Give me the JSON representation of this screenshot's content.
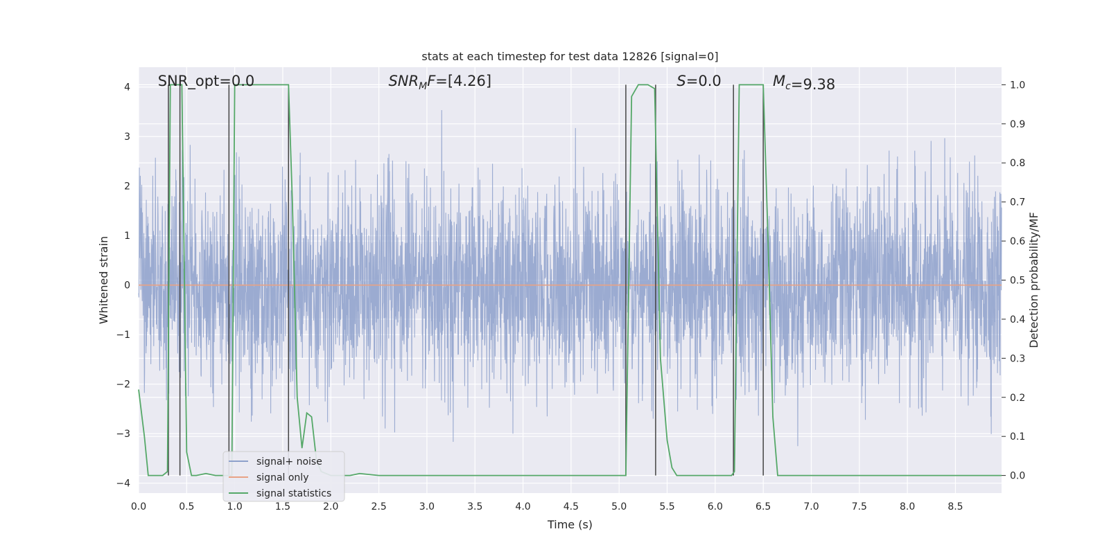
{
  "chart_data": {
    "type": "line",
    "title": "stats at each timestep for test data 12826 [signal=0]",
    "xlabel": "Time (s)",
    "ylabel": "Whitened strain",
    "ylabel_right": "Detection probability/MF",
    "xlim": [
      0.0,
      8.98
    ],
    "ylim": [
      -4.2,
      4.4
    ],
    "ylim_right": [
      -0.045,
      1.045
    ],
    "x_ticks": [
      0.0,
      0.5,
      1.0,
      1.5,
      2.0,
      2.5,
      3.0,
      3.5,
      4.0,
      4.5,
      5.0,
      5.5,
      6.0,
      6.5,
      7.0,
      7.5,
      8.0,
      8.5
    ],
    "x_tick_labels": [
      "0.0",
      "0.5",
      "1.0",
      "1.5",
      "2.0",
      "2.5",
      "3.0",
      "3.5",
      "4.0",
      "4.5",
      "5.0",
      "5.5",
      "6.0",
      "6.5",
      "7.0",
      "7.5",
      "8.0",
      "8.5"
    ],
    "y_ticks": [
      4,
      3,
      2,
      1,
      0,
      -1,
      -2,
      -3,
      -4
    ],
    "y_tick_labels": [
      "4",
      "3",
      "2",
      "1",
      "0",
      "−1",
      "−2",
      "−3",
      "−4"
    ],
    "y_ticks_right": [
      1.0,
      0.9,
      0.8,
      0.7,
      0.6,
      0.5,
      0.4,
      0.3,
      0.2,
      0.1,
      0.0
    ],
    "y_tick_labels_right": [
      "1.0",
      "0.9",
      "0.8",
      "0.7",
      "0.6",
      "0.5",
      "0.4",
      "0.3",
      "0.2",
      "0.1",
      "0.0"
    ],
    "grid": true,
    "legend": {
      "placement": "lower-left",
      "entries": [
        {
          "label": "signal+ noise",
          "color": "#8da0cb"
        },
        {
          "label": "signal only",
          "color": "#e8a285"
        },
        {
          "label": "signal statistics",
          "color": "#55a868"
        }
      ]
    },
    "annotations": [
      {
        "label": "SNR_opt=0.0",
        "x": 0.2
      },
      {
        "label": "SNR_MF=[4.26]",
        "x": 2.6
      },
      {
        "label": "S=0.0",
        "x": 5.6
      },
      {
        "label": "M_c=9.38",
        "x": 6.6
      }
    ],
    "series": [
      {
        "name": "signal+ noise",
        "axis": "left",
        "color": "#8da0cb",
        "style": "noise",
        "sample_count": 3600,
        "typical_amplitude": 1.0,
        "max_value": 4.0,
        "min_value": -3.8
      },
      {
        "name": "signal only",
        "axis": "left",
        "color": "#e8a285",
        "x": [
          0.0,
          8.98
        ],
        "y": [
          0.0,
          0.0
        ]
      },
      {
        "name": "signal statistics",
        "axis": "right",
        "color": "#55a868",
        "x": [
          0.0,
          0.06,
          0.1,
          0.15,
          0.25,
          0.3,
          0.33,
          0.38,
          0.42,
          0.45,
          0.5,
          0.55,
          0.6,
          0.7,
          0.8,
          0.9,
          0.97,
          1.0,
          1.05,
          1.5,
          1.56,
          1.6,
          1.65,
          1.7,
          1.75,
          1.8,
          1.85,
          1.9,
          2.0,
          2.1,
          2.2,
          2.3,
          2.5,
          3.0,
          4.0,
          5.0,
          5.07,
          5.13,
          5.2,
          5.3,
          5.37,
          5.43,
          5.5,
          5.55,
          5.6,
          5.7,
          6.0,
          6.17,
          6.2,
          6.25,
          6.5,
          6.55,
          6.6,
          6.65,
          7.0,
          8.0,
          8.98
        ],
        "y": [
          0.22,
          0.1,
          0.0,
          0.0,
          0.0,
          0.01,
          1.0,
          1.0,
          1.0,
          1.0,
          0.06,
          0.0,
          0.0,
          0.005,
          0.0,
          0.0,
          0.0,
          1.0,
          1.0,
          1.0,
          1.0,
          0.7,
          0.2,
          0.07,
          0.16,
          0.15,
          0.04,
          0.01,
          0.0,
          0.0,
          0.0,
          0.005,
          0.0,
          0.0,
          0.0,
          0.0,
          0.0,
          0.97,
          1.0,
          1.0,
          0.99,
          0.3,
          0.09,
          0.02,
          0.0,
          0.0,
          0.0,
          0.0,
          0.01,
          1.0,
          1.0,
          0.6,
          0.15,
          0.0,
          0.0,
          0.0,
          0.0
        ]
      }
    ],
    "vertical_markers": {
      "color": "#444444",
      "y_range_right": [
        0.0,
        1.0
      ],
      "x": [
        0.31,
        0.43,
        0.94,
        1.56,
        5.07,
        5.38,
        6.19,
        6.5
      ]
    }
  }
}
